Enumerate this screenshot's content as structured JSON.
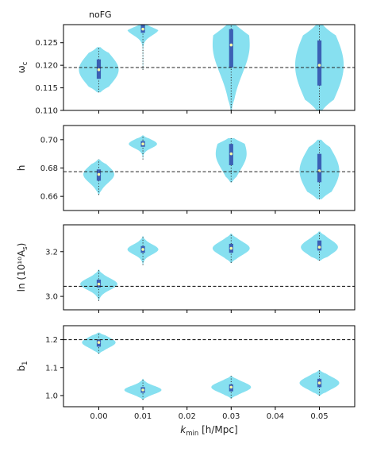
{
  "title": "noFG",
  "colors": {
    "violin": "#87e0f0",
    "box": "#3b5fb4",
    "median": "#f3f7a6",
    "whisker": "#333333",
    "reference": "#222222",
    "frame": "#000000"
  },
  "x_axis": {
    "label_prefix": "k",
    "label_sub": "min",
    "label_suffix": " [h/Mpc]",
    "lim": [
      -0.008,
      0.058
    ],
    "ticks": [
      0.0,
      0.01,
      0.02,
      0.03,
      0.04,
      0.05
    ],
    "tick_labels": [
      "0.00",
      "0.01",
      "0.02",
      "0.03",
      "0.04",
      "0.05"
    ]
  },
  "chart_data": [
    {
      "type": "violin",
      "param": "omega_c",
      "ylabel_main": "ω",
      "ylabel_sub": "c",
      "ylim": [
        0.11,
        0.129
      ],
      "yticks": [
        0.11,
        0.115,
        0.12,
        0.125
      ],
      "ytick_labels": [
        "0.110",
        "0.115",
        "0.120",
        "0.125"
      ],
      "reference": 0.1195,
      "x": [
        0.0,
        0.01,
        0.03,
        0.05
      ],
      "median": [
        0.119,
        0.128,
        0.1245,
        0.12
      ],
      "q1": [
        0.117,
        0.1272,
        0.1195,
        0.1155
      ],
      "q3": [
        0.1213,
        0.129,
        0.128,
        0.1255
      ],
      "min": [
        0.114,
        0.119,
        0.11,
        0.11
      ],
      "max": [
        0.124,
        0.129,
        0.129,
        0.129
      ],
      "max_width": [
        0.0045,
        0.0035,
        0.0042,
        0.0055
      ],
      "skew": [
        0.0,
        0.1,
        0.25,
        0.0
      ]
    },
    {
      "type": "violin",
      "param": "h",
      "ylabel_main": "h",
      "ylabel_sub": "",
      "ylim": [
        0.65,
        0.71
      ],
      "yticks": [
        0.66,
        0.68,
        0.7
      ],
      "ytick_labels": [
        "0.66",
        "0.68",
        "0.70"
      ],
      "reference": 0.6774,
      "x": [
        0.0,
        0.01,
        0.03,
        0.05
      ],
      "median": [
        0.6755,
        0.697,
        0.69,
        0.678
      ],
      "q1": [
        0.671,
        0.695,
        0.682,
        0.67
      ],
      "q3": [
        0.679,
        0.699,
        0.697,
        0.69
      ],
      "min": [
        0.661,
        0.686,
        0.67,
        0.658
      ],
      "max": [
        0.686,
        0.703,
        0.701,
        0.7
      ],
      "max_width": [
        0.0035,
        0.0032,
        0.0035,
        0.0045
      ],
      "skew": [
        0.0,
        0.0,
        0.2,
        0.0
      ]
    },
    {
      "type": "violin",
      "param": "ln_10_10_As",
      "ylabel_main": "ln (10¹⁰A",
      "ylabel_sub": "s",
      "ylabel_end": ")",
      "ylim": [
        2.94,
        3.32
      ],
      "yticks": [
        3.0,
        3.2
      ],
      "ytick_labels": [
        "3.0",
        "3.2"
      ],
      "reference": 3.045,
      "x": [
        0.0,
        0.01,
        0.03,
        0.05
      ],
      "median": [
        3.055,
        3.21,
        3.215,
        3.22
      ],
      "q1": [
        3.04,
        3.195,
        3.195,
        3.205
      ],
      "q3": [
        3.075,
        3.225,
        3.235,
        3.25
      ],
      "min": [
        2.98,
        3.14,
        3.15,
        3.16
      ],
      "max": [
        3.12,
        3.27,
        3.28,
        3.29
      ],
      "max_width": [
        0.0042,
        0.0035,
        0.0042,
        0.0042
      ],
      "skew": [
        0.0,
        0.0,
        0.0,
        0.0
      ]
    },
    {
      "type": "violin",
      "param": "b1",
      "ylabel_main": "b",
      "ylabel_sub": "1",
      "ylim": [
        0.96,
        1.25
      ],
      "yticks": [
        1.0,
        1.1,
        1.2
      ],
      "ytick_labels": [
        "1.0",
        "1.1",
        "1.2"
      ],
      "reference": 1.2,
      "x": [
        0.0,
        0.01,
        0.03,
        0.05
      ],
      "median": [
        1.19,
        1.02,
        1.03,
        1.045
      ],
      "q1": [
        1.175,
        1.01,
        1.015,
        1.03
      ],
      "q3": [
        1.2,
        1.03,
        1.04,
        1.06
      ],
      "min": [
        1.15,
        0.985,
        0.99,
        1.0
      ],
      "max": [
        1.225,
        1.06,
        1.07,
        1.09
      ],
      "max_width": [
        0.0038,
        0.0042,
        0.0045,
        0.0045
      ],
      "skew": [
        0.0,
        0.0,
        0.0,
        0.0
      ]
    }
  ]
}
